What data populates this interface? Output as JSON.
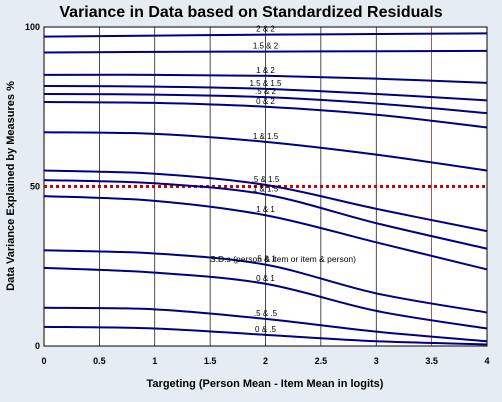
{
  "chart_data": {
    "type": "line",
    "title": "Variance in Data based on Standardized Residuals",
    "xlabel": "Targeting (Person Mean - Item Mean in logits)",
    "ylabel": "Data Variance Explained by Measures %",
    "xlim": [
      0,
      4
    ],
    "ylim": [
      0,
      100
    ],
    "x_ticks": [
      "0",
      "0.5",
      "1",
      "1.5",
      "2",
      "2.5",
      "3",
      "3.5",
      "4"
    ],
    "y_ticks": [
      "0",
      "50",
      "100"
    ],
    "grid": "vertical",
    "reference_line": {
      "y": 50,
      "color": "#cc0000",
      "style": "dotted"
    },
    "annotation": "S.D.s (person & item or item & person)",
    "series": [
      {
        "name": "2 & 2",
        "x": [
          0,
          1,
          2,
          3,
          4
        ],
        "y": [
          97,
          97.3,
          97.6,
          97.8,
          98
        ]
      },
      {
        "name": "1.5 & 2",
        "x": [
          0,
          1,
          2,
          3,
          4
        ],
        "y": [
          92,
          92.2,
          92.3,
          92.4,
          92.5
        ]
      },
      {
        "name": "1 & 2",
        "x": [
          0,
          1,
          2,
          3,
          4
        ],
        "y": [
          85,
          85,
          84.7,
          83.8,
          82.5
        ]
      },
      {
        "name": "1.5 & 1.5",
        "x": [
          0,
          1,
          2,
          3,
          4
        ],
        "y": [
          81.5,
          81.3,
          80.6,
          79,
          77
        ]
      },
      {
        "name": ".5 & 2",
        "x": [
          0,
          1,
          2,
          3,
          4
        ],
        "y": [
          79,
          78.8,
          78,
          76,
          73
        ]
      },
      {
        "name": "0 & 2",
        "x": [
          0,
          1,
          2,
          3,
          4
        ],
        "y": [
          76.5,
          76.2,
          75,
          72.5,
          68.5
        ]
      },
      {
        "name": "1 & 1.5",
        "x": [
          0,
          1,
          2,
          3,
          4
        ],
        "y": [
          67,
          66.5,
          64,
          60,
          55
        ]
      },
      {
        "name": ".5 & 1.5",
        "x": [
          0,
          1,
          2,
          3,
          4
        ],
        "y": [
          55,
          54,
          50.5,
          43,
          36
        ]
      },
      {
        "name": "1 & 1.5",
        "x": [
          0,
          1,
          2,
          3,
          4
        ],
        "y": [
          52,
          51,
          47.5,
          38.5,
          30.5
        ]
      },
      {
        "name": "1 & 1",
        "x": [
          0,
          1,
          2,
          3,
          4
        ],
        "y": [
          47,
          45.5,
          41,
          32.5,
          24
        ]
      },
      {
        "name": ".5 & 1",
        "x": [
          0,
          1,
          2,
          3,
          4
        ],
        "y": [
          30,
          29,
          25.5,
          16.5,
          10.5
        ]
      },
      {
        "name": "0 & 1",
        "x": [
          0,
          1,
          2,
          3,
          4
        ],
        "y": [
          24.5,
          23,
          19.5,
          11,
          5.5
        ]
      },
      {
        "name": ".5 & .5",
        "x": [
          0,
          1,
          2,
          3,
          4
        ],
        "y": [
          12,
          11.5,
          8.5,
          4.5,
          1.5
        ]
      },
      {
        "name": "0 & .5",
        "x": [
          0,
          1,
          2,
          3,
          4
        ],
        "y": [
          6,
          5.5,
          3.5,
          1.5,
          0.5
        ]
      }
    ],
    "label_x": 2,
    "colors": {
      "line": "#000080",
      "reference": "#cc0000",
      "grid": "#000000",
      "grid_last": "#7f1a1a",
      "plot_bg": "#ffffff",
      "page_bg": "#e6ecf3"
    }
  }
}
